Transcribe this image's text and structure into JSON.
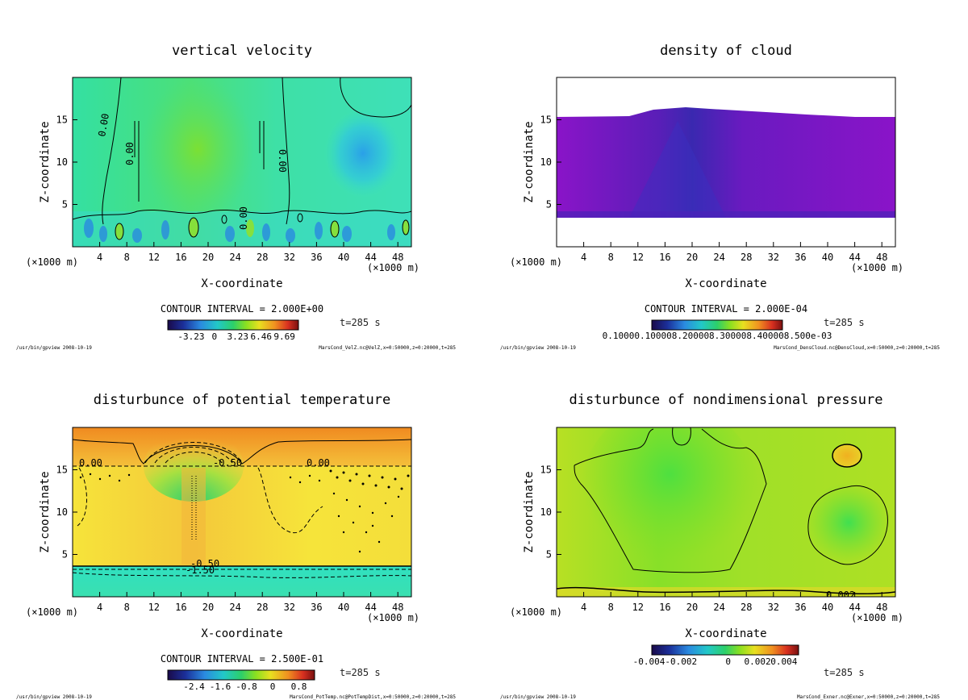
{
  "common": {
    "xlabel": "X-coordinate",
    "ylabel": "Z-coordinate",
    "x_unit_left": "(×1000 m)",
    "x_unit_right": "(×1000 m)",
    "time": "t=285 s",
    "footer_left": "/usr/bin/gpview  2008-10-19"
  },
  "chart_data": [
    {
      "type": "heatmap",
      "title": "vertical velocity",
      "xlim": [
        0,
        50
      ],
      "ylim": [
        0,
        20
      ],
      "x_ticks": [
        4,
        8,
        12,
        16,
        20,
        24,
        28,
        32,
        36,
        40,
        44,
        48
      ],
      "y_ticks": [
        5,
        10,
        15
      ],
      "contour_interval": "CONTOUR INTERVAL = 2.000E+00",
      "colorbar_ticks": [
        "-3.23",
        "0",
        "3.23",
        "6.46",
        "9.69"
      ],
      "contour_labels": [
        "0.00",
        "0.00",
        "0.00",
        "0.00"
      ],
      "footer_right": "MarsCond_VelZ.nc@VelZ,x=0:50000,z=0:20000,t=285"
    },
    {
      "type": "heatmap",
      "title": "density of cloud",
      "xlim": [
        0,
        50
      ],
      "ylim": [
        0,
        20
      ],
      "x_ticks": [
        4,
        8,
        12,
        16,
        20,
        24,
        28,
        32,
        36,
        40,
        44,
        48
      ],
      "y_ticks": [
        5,
        10,
        15
      ],
      "contour_interval": "CONTOUR INTERVAL = 2.000E-04",
      "colorbar_ticks": [
        "0.10000.100008.200008.300008.400008.500e-03"
      ],
      "cloud_layer_z": [
        3.5,
        15.5
      ],
      "footer_right": "MarsCond_DensCloud.nc@DensCloud,x=0:50000,z=0:20000,t=285"
    },
    {
      "type": "heatmap",
      "title": "disturbunce of potential temperature",
      "xlim": [
        0,
        50
      ],
      "ylim": [
        0,
        20
      ],
      "x_ticks": [
        4,
        8,
        12,
        16,
        20,
        24,
        28,
        32,
        36,
        40,
        44,
        48
      ],
      "y_ticks": [
        5,
        10,
        15
      ],
      "contour_interval": "CONTOUR INTERVAL = 2.500E-01",
      "colorbar_ticks": [
        "-2.4",
        "-1.6",
        "-0.8",
        "0",
        "0.8"
      ],
      "contour_labels": [
        "0.00",
        "-0.50",
        "0.00",
        "-0.50",
        "-1.50"
      ],
      "footer_right": "MarsCond_PotTemp.nc@PotTempDist,x=0:50000,z=0:20000,t=285"
    },
    {
      "type": "heatmap",
      "title": "disturbunce of nondimensional pressure",
      "xlim": [
        0,
        50
      ],
      "ylim": [
        0,
        20
      ],
      "x_ticks": [
        4,
        8,
        12,
        16,
        20,
        24,
        28,
        32,
        36,
        40,
        44,
        48
      ],
      "y_ticks": [
        5,
        10,
        15
      ],
      "colorbar_ticks": [
        "-0.004-0.002",
        "0",
        "0.002",
        "0.004"
      ],
      "contour_labels": [
        "0.002"
      ],
      "footer_right": "MarsCond_Exner.nc@Exner,x=0:50000,z=0:20000,t=285"
    }
  ]
}
